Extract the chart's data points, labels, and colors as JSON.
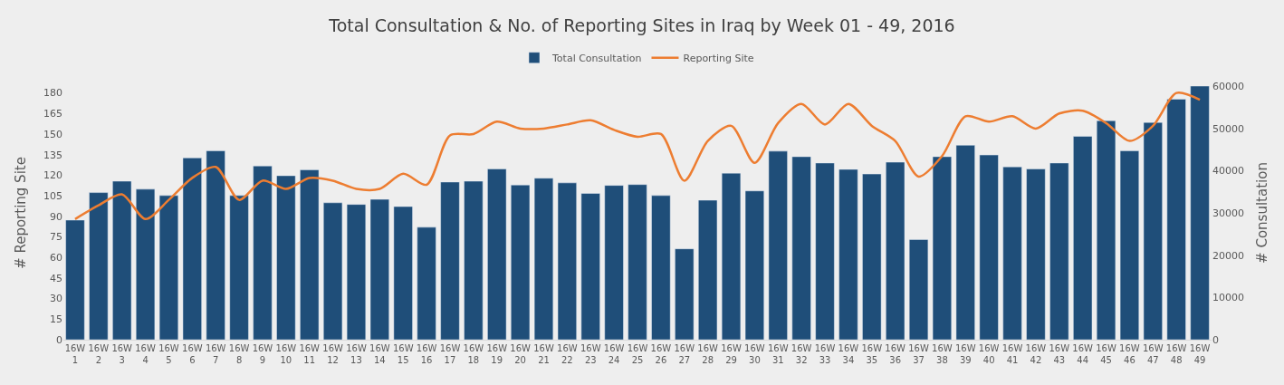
{
  "chart_data": {
    "type": "bar",
    "title": "Total Consultation & No. of Reporting Sites in Iraq by Week 01 - 49, 2016",
    "ylabel": "# Reporting Site",
    "y2label": "# Consultation",
    "categories": [
      "16W 1",
      "16W 2",
      "16W 3",
      "16W 4",
      "16W 5",
      "16W 6",
      "16W 7",
      "16W 8",
      "16W 9",
      "16W 10",
      "16W 11",
      "16W 12",
      "16W 13",
      "16W 14",
      "16W 15",
      "16W 16",
      "16W 17",
      "16W 18",
      "16W 19",
      "16W 20",
      "16W 21",
      "16W 22",
      "16W 23",
      "16W 24",
      "16W 25",
      "16W 26",
      "16W 27",
      "16W 28",
      "16W 29",
      "16W 30",
      "16W 31",
      "16W 32",
      "16W 33",
      "16W 34",
      "16W 35",
      "16W 36",
      "16W 37",
      "16W 38",
      "16W 39",
      "16W 40",
      "16W 41",
      "16W 42",
      "16W 43",
      "16W 44",
      "16W 45",
      "16W 46",
      "16W 47",
      "16W 48",
      "16W 49"
    ],
    "series": [
      {
        "name": "Total Consultation",
        "axis": "y2",
        "color": "#1f4e79",
        "values": [
          28300,
          34800,
          37500,
          35600,
          34100,
          43000,
          44700,
          34100,
          41100,
          38800,
          40200,
          32400,
          32000,
          33200,
          31500,
          26600,
          37300,
          37500,
          40400,
          36600,
          38200,
          37100,
          34600,
          36500,
          36700,
          34100,
          21500,
          33000,
          39400,
          35200,
          44600,
          43300,
          41800,
          40300,
          39200,
          42000,
          23700,
          43300,
          46000,
          43700,
          40900,
          40400,
          41800,
          48100,
          51800,
          44700,
          51400,
          56900,
          60000
        ]
      },
      {
        "name": "Reporting Site",
        "type": "line",
        "axis": "y",
        "color": "#ed7d31",
        "values": [
          88,
          98,
          106,
          88,
          102,
          118,
          126,
          102,
          116,
          110,
          118,
          116,
          110,
          110,
          121,
          113,
          149,
          150,
          159,
          154,
          154,
          157,
          160,
          153,
          148,
          150,
          116,
          145,
          156,
          129,
          158,
          172,
          157,
          172,
          156,
          145,
          119,
          134,
          163,
          159,
          163,
          154,
          165,
          167,
          158,
          145,
          156,
          180,
          175
        ]
      }
    ],
    "ylim": [
      0,
      185
    ],
    "yticks": [
      0,
      15,
      30,
      45,
      60,
      75,
      90,
      105,
      120,
      135,
      150,
      165,
      180
    ],
    "y2lim": [
      0,
      60000
    ],
    "y2ticks": [
      0,
      10000,
      20000,
      30000,
      40000,
      50000,
      60000
    ],
    "legend": "top",
    "grid": false
  }
}
